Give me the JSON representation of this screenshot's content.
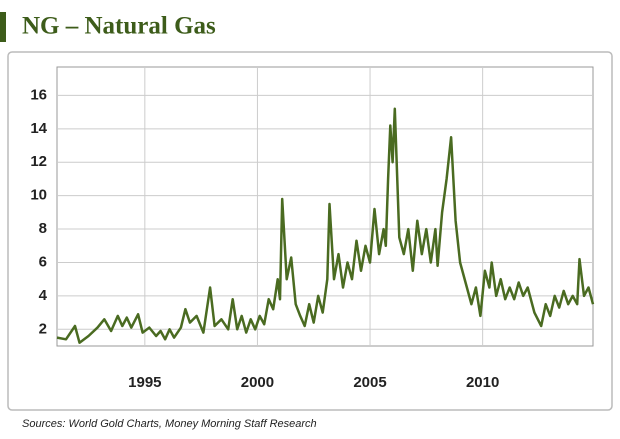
{
  "chart_data": {
    "type": "line",
    "title": "NG – Natural Gas",
    "source": "Sources: World Gold Charts, Money Morning Staff Research",
    "color": "#4a6b21",
    "grid": true,
    "xlim": [
      1991.1,
      2014.9
    ],
    "xticks": [
      1995,
      2000,
      2005,
      2010
    ],
    "ylim": [
      1,
      17.7
    ],
    "yticks": [
      2,
      4,
      6,
      8,
      10,
      12,
      14,
      16
    ],
    "x": [
      1991.1,
      1991.5,
      1991.9,
      1992.1,
      1992.5,
      1992.9,
      1993.2,
      1993.5,
      1993.8,
      1994.0,
      1994.2,
      1994.4,
      1994.7,
      1994.9,
      1995.2,
      1995.5,
      1995.7,
      1995.9,
      1996.1,
      1996.3,
      1996.6,
      1996.8,
      1997.0,
      1997.3,
      1997.6,
      1997.9,
      1998.1,
      1998.4,
      1998.7,
      1998.9,
      1999.1,
      1999.3,
      1999.5,
      1999.7,
      1999.9,
      2000.1,
      2000.3,
      2000.5,
      2000.7,
      2000.9,
      2001.0,
      2001.1,
      2001.3,
      2001.5,
      2001.7,
      2001.9,
      2002.1,
      2002.3,
      2002.5,
      2002.7,
      2002.9,
      2003.1,
      2003.2,
      2003.4,
      2003.6,
      2003.8,
      2004.0,
      2004.2,
      2004.4,
      2004.6,
      2004.8,
      2005.0,
      2005.2,
      2005.4,
      2005.6,
      2005.7,
      2005.8,
      2005.9,
      2006.0,
      2006.1,
      2006.3,
      2006.5,
      2006.7,
      2006.9,
      2007.1,
      2007.3,
      2007.5,
      2007.7,
      2007.9,
      2008.0,
      2008.2,
      2008.4,
      2008.6,
      2008.8,
      2009.0,
      2009.3,
      2009.5,
      2009.7,
      2009.9,
      2010.1,
      2010.3,
      2010.4,
      2010.6,
      2010.8,
      2011.0,
      2011.2,
      2011.4,
      2011.6,
      2011.8,
      2012.0,
      2012.3,
      2012.6,
      2012.8,
      2013.0,
      2013.2,
      2013.4,
      2013.6,
      2013.8,
      2014.0,
      2014.2,
      2014.3,
      2014.5,
      2014.7,
      2014.9
    ],
    "values": [
      1.5,
      1.4,
      2.2,
      1.2,
      1.6,
      2.1,
      2.6,
      1.9,
      2.8,
      2.2,
      2.7,
      2.1,
      2.9,
      1.8,
      2.1,
      1.6,
      1.9,
      1.4,
      2.0,
      1.5,
      2.1,
      3.2,
      2.4,
      2.8,
      1.8,
      4.5,
      2.2,
      2.6,
      2.0,
      3.8,
      2.0,
      2.8,
      1.8,
      2.6,
      2.0,
      2.8,
      2.3,
      3.8,
      3.2,
      5.0,
      3.8,
      9.8,
      5.0,
      6.3,
      3.5,
      2.8,
      2.2,
      3.5,
      2.4,
      4.0,
      3.0,
      5.0,
      9.5,
      5.0,
      6.5,
      4.5,
      6.0,
      5.0,
      7.3,
      5.5,
      7.0,
      6.0,
      9.2,
      6.5,
      8.0,
      7.0,
      11.0,
      14.2,
      12.0,
      15.2,
      7.5,
      6.5,
      8.0,
      5.5,
      8.5,
      6.5,
      8.0,
      6.0,
      8.0,
      5.8,
      9.0,
      11.0,
      13.5,
      8.5,
      6.0,
      4.5,
      3.5,
      4.5,
      2.8,
      5.5,
      4.5,
      6.0,
      4.0,
      5.0,
      3.8,
      4.5,
      3.8,
      4.8,
      4.0,
      4.5,
      3.0,
      2.2,
      3.5,
      2.8,
      4.0,
      3.3,
      4.3,
      3.5,
      4.0,
      3.5,
      6.2,
      4.0,
      4.5,
      3.5
    ]
  }
}
